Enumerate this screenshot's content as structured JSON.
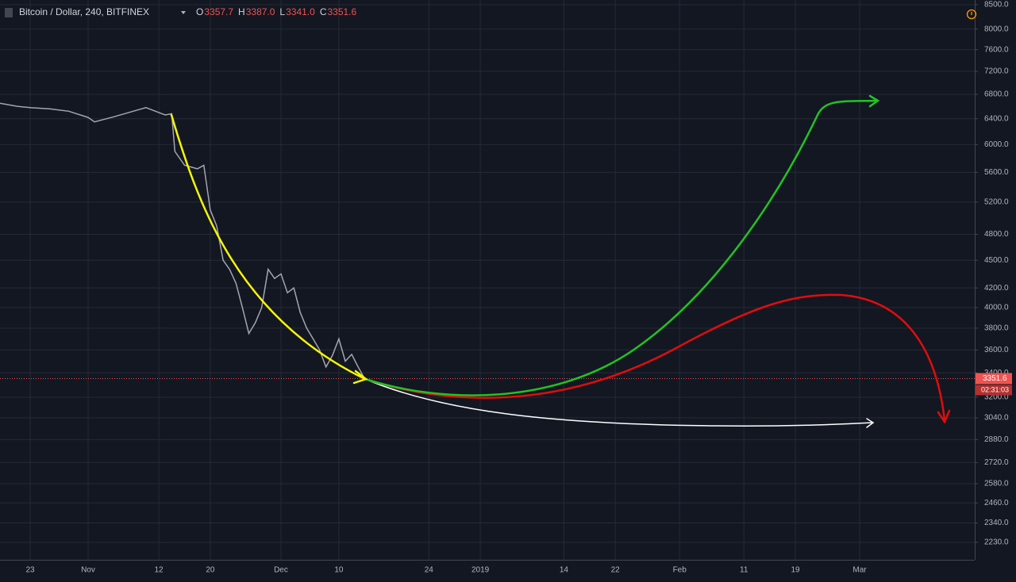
{
  "chart_data": {
    "type": "line",
    "title": "Bitcoin / Dollar, 240, BITFINEX",
    "ohlc": {
      "labels": [
        "O",
        "H",
        "L",
        "C"
      ],
      "values": [
        3357.7,
        3387.0,
        3341.0,
        3351.6
      ],
      "value_labels": [
        "3357.7",
        "3387.0",
        "3341.0",
        "3351.6"
      ]
    },
    "countdown": "02:31:03",
    "x": [
      -4.7,
      -2,
      0,
      3,
      6,
      9,
      10,
      13,
      16,
      18,
      20,
      21,
      22,
      22.5,
      24,
      26,
      27,
      28,
      29,
      30,
      31,
      32,
      33,
      34,
      35,
      36,
      37,
      38,
      39,
      40,
      41,
      42,
      43,
      44,
      45,
      46,
      47,
      48,
      49,
      50,
      51,
      52
    ],
    "values": [
      6650,
      6600,
      6580,
      6560,
      6520,
      6420,
      6350,
      6430,
      6520,
      6580,
      6500,
      6460,
      6480,
      5900,
      5700,
      5650,
      5700,
      5100,
      4900,
      4500,
      4400,
      4250,
      4000,
      3750,
      3850,
      4000,
      4400,
      4300,
      4350,
      4150,
      4200,
      3950,
      3800,
      3700,
      3600,
      3450,
      3550,
      3700,
      3500,
      3560,
      3450,
      3351.6
    ],
    "color": "#a3a6af",
    "last_price_color": "#ef5350",
    "xlim": [
      -4.7,
      146.9
    ],
    "xticks": [
      {
        "value": 0,
        "label": "23"
      },
      {
        "value": 9,
        "label": "Nov"
      },
      {
        "value": 20,
        "label": "12"
      },
      {
        "value": 28,
        "label": "20"
      },
      {
        "value": 39,
        "label": "Dec"
      },
      {
        "value": 48,
        "label": "10"
      },
      {
        "value": 62,
        "label": "24"
      },
      {
        "value": 70,
        "label": "2019"
      },
      {
        "value": 83,
        "label": "14"
      },
      {
        "value": 91,
        "label": "22"
      },
      {
        "value": 101,
        "label": "Feb"
      },
      {
        "value": 111,
        "label": "11"
      },
      {
        "value": 119,
        "label": "19"
      },
      {
        "value": 129,
        "label": "Mar"
      }
    ],
    "ylim": [
      2135,
      8600
    ],
    "log_scale": true,
    "grid": true,
    "yticks": [
      {
        "value": 8500,
        "label": "8500.0"
      },
      {
        "value": 8000,
        "label": "8000.0"
      },
      {
        "value": 7600,
        "label": "7600.0"
      },
      {
        "value": 7200,
        "label": "7200.0"
      },
      {
        "value": 6800,
        "label": "6800.0"
      },
      {
        "value": 6400,
        "label": "6400.0"
      },
      {
        "value": 6000,
        "label": "6000.0"
      },
      {
        "value": 5600,
        "label": "5600.0"
      },
      {
        "value": 5200,
        "label": "5200.0"
      },
      {
        "value": 4800,
        "label": "4800.0"
      },
      {
        "value": 4500,
        "label": "4500.0"
      },
      {
        "value": 4200,
        "label": "4200.0"
      },
      {
        "value": 4000,
        "label": "4000.0"
      },
      {
        "value": 3800,
        "label": "3800.0"
      },
      {
        "value": 3600,
        "label": "3600.0"
      },
      {
        "value": 3400,
        "label": "3400.0"
      },
      {
        "value": 3200,
        "label": "3200.0"
      },
      {
        "value": 3040,
        "label": "3040.0"
      },
      {
        "value": 2880,
        "label": "2880.0"
      },
      {
        "value": 2720,
        "label": "2720.0"
      },
      {
        "value": 2580,
        "label": "2580.0"
      },
      {
        "value": 2460,
        "label": "2460.0"
      },
      {
        "value": 2340,
        "label": "2340.0"
      },
      {
        "value": 2230,
        "label": "2230.0"
      }
    ]
  }
}
